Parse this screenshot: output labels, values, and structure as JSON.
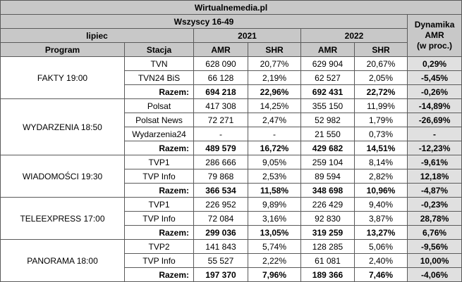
{
  "title": "Wirtualnemedia.pl",
  "subtitle": "Wszyscy 16-49",
  "month": "lipiec",
  "years": [
    "2021",
    "2022"
  ],
  "dynamics_header": [
    "Dynamika",
    "AMR",
    "(w proc.)"
  ],
  "column_headers": {
    "program": "Program",
    "station": "Stacja",
    "amr": "AMR",
    "shr": "SHR"
  },
  "groups": [
    {
      "program": "FAKTY 19:00",
      "rows": [
        {
          "station": "TVN",
          "amr2021": "628 090",
          "shr2021": "20,77%",
          "amr2022": "629 904",
          "shr2022": "20,67%",
          "dyn": "0,29%"
        },
        {
          "station": "TVN24 BiS",
          "amr2021": "66 128",
          "shr2021": "2,19%",
          "amr2022": "62 527",
          "shr2022": "2,05%",
          "dyn": "-5,45%"
        },
        {
          "station": "Razem:",
          "amr2021": "694 218",
          "shr2021": "22,96%",
          "amr2022": "692 431",
          "shr2022": "22,72%",
          "dyn": "-0,26%",
          "total": true
        }
      ]
    },
    {
      "program": "WYDARZENIA 18:50",
      "rows": [
        {
          "station": "Polsat",
          "amr2021": "417 308",
          "shr2021": "14,25%",
          "amr2022": "355 150",
          "shr2022": "11,99%",
          "dyn": "-14,89%"
        },
        {
          "station": "Polsat News",
          "amr2021": "72 271",
          "shr2021": "2,47%",
          "amr2022": "52 982",
          "shr2022": "1,79%",
          "dyn": "-26,69%"
        },
        {
          "station": "Wydarzenia24",
          "amr2021": "-",
          "shr2021": "-",
          "amr2022": "21 550",
          "shr2022": "0,73%",
          "dyn": "-"
        },
        {
          "station": "Razem:",
          "amr2021": "489 579",
          "shr2021": "16,72%",
          "amr2022": "429 682",
          "shr2022": "14,51%",
          "dyn": "-12,23%",
          "total": true
        }
      ]
    },
    {
      "program": "WIADOMOŚCI 19:30",
      "rows": [
        {
          "station": "TVP1",
          "amr2021": "286 666",
          "shr2021": "9,05%",
          "amr2022": "259 104",
          "shr2022": "8,14%",
          "dyn": "-9,61%"
        },
        {
          "station": "TVP Info",
          "amr2021": "79 868",
          "shr2021": "2,53%",
          "amr2022": "89 594",
          "shr2022": "2,82%",
          "dyn": "12,18%"
        },
        {
          "station": "Razem:",
          "amr2021": "366 534",
          "shr2021": "11,58%",
          "amr2022": "348 698",
          "shr2022": "10,96%",
          "dyn": "-4,87%",
          "total": true
        }
      ]
    },
    {
      "program": "TELEEXPRESS 17:00",
      "rows": [
        {
          "station": "TVP1",
          "amr2021": "226 952",
          "shr2021": "9,89%",
          "amr2022": "226 429",
          "shr2022": "9,40%",
          "dyn": "-0,23%"
        },
        {
          "station": "TVP Info",
          "amr2021": "72 084",
          "shr2021": "3,16%",
          "amr2022": "92 830",
          "shr2022": "3,87%",
          "dyn": "28,78%"
        },
        {
          "station": "Razem:",
          "amr2021": "299 036",
          "shr2021": "13,05%",
          "amr2022": "319 259",
          "shr2022": "13,27%",
          "dyn": "6,76%",
          "total": true
        }
      ]
    },
    {
      "program": "PANORAMA 18:00",
      "rows": [
        {
          "station": "TVP2",
          "amr2021": "141 843",
          "shr2021": "5,74%",
          "amr2022": "128 285",
          "shr2022": "5,06%",
          "dyn": "-9,56%"
        },
        {
          "station": "TVP Info",
          "amr2021": "55 527",
          "shr2021": "2,22%",
          "amr2022": "61 081",
          "shr2022": "2,40%",
          "dyn": "10,00%"
        },
        {
          "station": "Razem:",
          "amr2021": "197 370",
          "shr2021": "7,96%",
          "amr2022": "189 366",
          "shr2022": "7,46%",
          "dyn": "-4,06%",
          "total": true
        }
      ]
    }
  ]
}
